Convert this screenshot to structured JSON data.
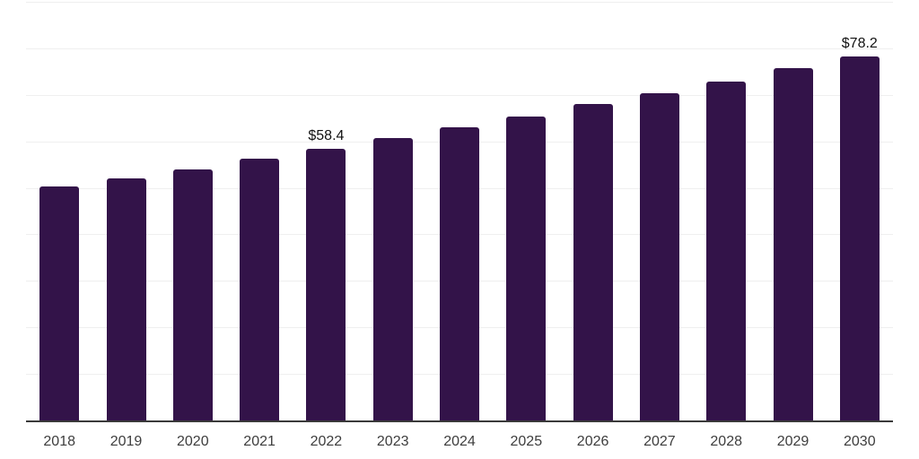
{
  "chart_data": {
    "type": "bar",
    "title": "",
    "xlabel": "",
    "ylabel": "",
    "categories": [
      "2018",
      "2019",
      "2020",
      "2021",
      "2022",
      "2023",
      "2024",
      "2025",
      "2026",
      "2027",
      "2028",
      "2029",
      "2030"
    ],
    "values": [
      50.3,
      52.1,
      54.0,
      56.2,
      58.4,
      60.7,
      63.0,
      65.3,
      68.0,
      70.4,
      72.9,
      75.7,
      78.2
    ],
    "data_labels": [
      "",
      "",
      "",
      "",
      "$58.4",
      "",
      "",
      "",
      "",
      "",
      "",
      "",
      "$78.2"
    ],
    "ylim": [
      0,
      90
    ],
    "grid_step": 10,
    "grid": true,
    "y_tick_labels_visible": false,
    "legend_position": "none",
    "colors": {
      "bar": "#331349",
      "grid": "#efefef",
      "axis": "#3a3a3a",
      "tick_label": "#3d3d3d",
      "data_label": "#111111",
      "background": "#ffffff"
    }
  }
}
